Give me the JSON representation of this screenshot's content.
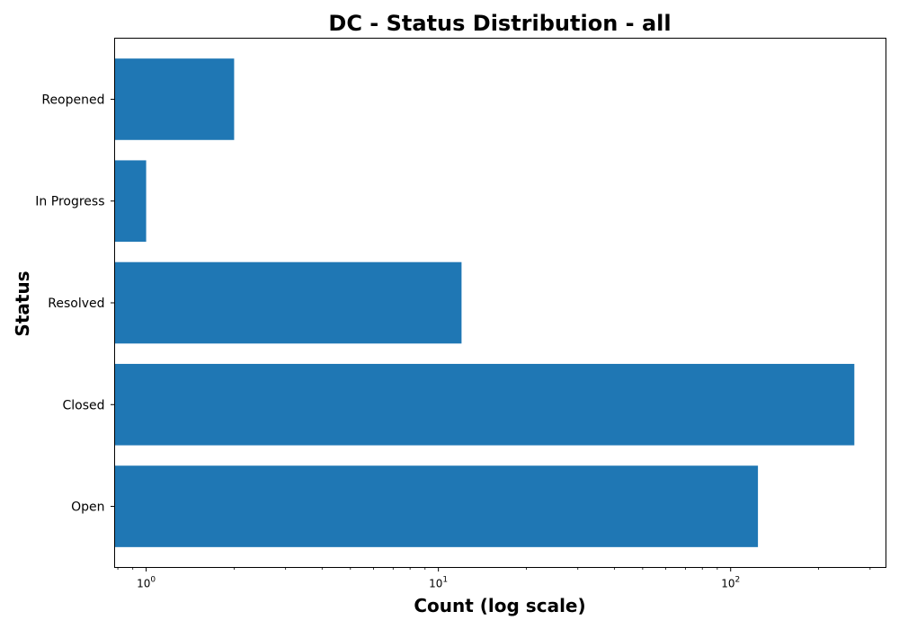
{
  "chart_data": {
    "type": "bar",
    "orientation": "horizontal",
    "title": "DC - Status Distribution - all",
    "xlabel": "Count (log scale)",
    "ylabel": "Status",
    "xscale": "log",
    "xlim": [
      0.78,
      340
    ],
    "categories": [
      "Open",
      "Closed",
      "Resolved",
      "In Progress",
      "Reopened"
    ],
    "values": [
      124,
      265,
      12,
      1,
      2
    ],
    "x_ticks": [
      {
        "value": 1,
        "base": "10",
        "exp": "0"
      },
      {
        "value": 10,
        "base": "10",
        "exp": "1"
      },
      {
        "value": 100,
        "base": "10",
        "exp": "2"
      }
    ],
    "bar_color": "#1f77b4",
    "grid": false,
    "legend": "none"
  }
}
